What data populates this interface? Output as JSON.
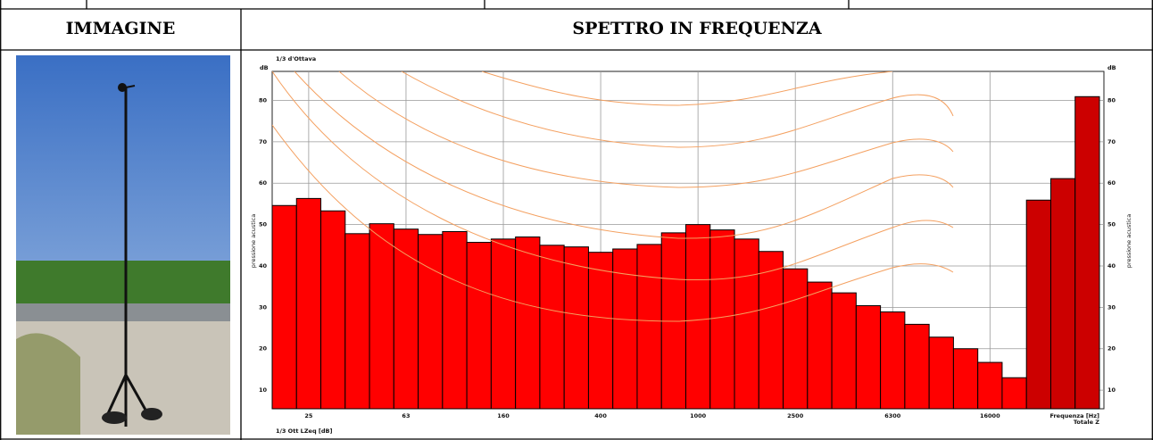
{
  "table": {
    "headers": [
      "IMMAGINE",
      "SPETTRO IN FREQUENZA"
    ]
  },
  "chart_data": {
    "type": "bar",
    "top_label": "1/3 d'Ottava",
    "y_unit": "dB",
    "y_label": "pressione acustica",
    "x_label": "Frequenza [Hz]",
    "categories": [
      null,
      "25",
      null,
      null,
      null,
      "63",
      null,
      null,
      null,
      "160",
      null,
      null,
      null,
      "400",
      null,
      null,
      null,
      "1000",
      null,
      null,
      null,
      "2500",
      null,
      null,
      null,
      "6300",
      null,
      null,
      null,
      "16000",
      null,
      null,
      null,
      null
    ],
    "series": [
      {
        "name": "1/3 Ott LZeq [dB]",
        "color": "#ff0000",
        "values": [
          54.6,
          56.3,
          53.3,
          47.8,
          50.2,
          48.9,
          47.6,
          48.3,
          45.7,
          46.5,
          47.0,
          45.0,
          44.6,
          43.3,
          44.1,
          45.2,
          48.0,
          50.0,
          48.7,
          46.5,
          43.5,
          39.3,
          36.1,
          33.5,
          30.4,
          28.9,
          25.9,
          22.8,
          20.0,
          16.7,
          13.0,
          null,
          null,
          null
        ]
      },
      {
        "name": "Totale Z",
        "color": "#cc0000",
        "values": [
          null,
          null,
          null,
          null,
          null,
          null,
          null,
          null,
          null,
          null,
          null,
          null,
          null,
          null,
          null,
          null,
          null,
          null,
          null,
          null,
          null,
          null,
          null,
          null,
          null,
          null,
          null,
          null,
          null,
          null,
          null,
          55.9,
          61.1,
          80.9
        ]
      }
    ],
    "ylim": [
      5.5,
      87
    ],
    "yticks": [
      10,
      20,
      30,
      40,
      50,
      60,
      70,
      80
    ],
    "grid": true
  }
}
